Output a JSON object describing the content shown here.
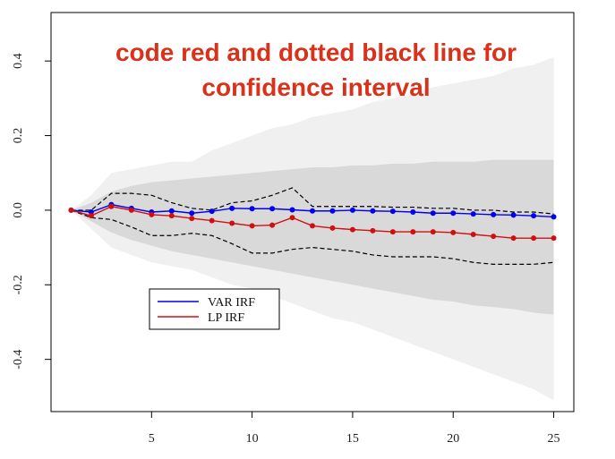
{
  "chart_data": {
    "type": "line",
    "title": "",
    "xlabel": "",
    "ylabel": "",
    "xlim": [
      0,
      26
    ],
    "ylim": [
      -0.54,
      0.53
    ],
    "x_ticks": [
      5,
      10,
      15,
      20,
      25
    ],
    "y_ticks": [
      -0.4,
      -0.2,
      0.0,
      0.2,
      0.4
    ],
    "y_tick_labels": [
      "-0.4",
      "-0.2",
      "0.0",
      "0.2",
      "0.4"
    ],
    "x": [
      1,
      2,
      3,
      4,
      5,
      6,
      7,
      8,
      9,
      10,
      11,
      12,
      13,
      14,
      15,
      16,
      17,
      18,
      19,
      20,
      21,
      22,
      23,
      24,
      25
    ],
    "series": [
      {
        "name": "VAR IRF",
        "color": "#0000ee",
        "values": [
          0.0,
          -0.005,
          0.015,
          0.005,
          -0.005,
          -0.002,
          -0.008,
          -0.003,
          0.005,
          0.004,
          0.004,
          0.001,
          -0.002,
          -0.002,
          0.0,
          -0.002,
          -0.003,
          -0.005,
          -0.008,
          -0.008,
          -0.01,
          -0.012,
          -0.013,
          -0.015,
          -0.018
        ]
      },
      {
        "name": "LP IRF",
        "color": "#d01010",
        "values": [
          0.0,
          -0.015,
          0.01,
          0.0,
          -0.012,
          -0.015,
          -0.022,
          -0.028,
          -0.035,
          -0.042,
          -0.04,
          -0.02,
          -0.042,
          -0.048,
          -0.052,
          -0.055,
          -0.058,
          -0.058,
          -0.058,
          -0.06,
          -0.065,
          -0.07,
          -0.075,
          -0.075,
          -0.075
        ]
      }
    ],
    "ci_lines": {
      "color": "#000000",
      "style": "dashed",
      "upper": [
        0.0,
        0.0,
        0.045,
        0.045,
        0.04,
        0.02,
        0.005,
        0.0,
        0.02,
        0.025,
        0.04,
        0.06,
        0.01,
        0.01,
        0.01,
        0.01,
        0.008,
        0.008,
        0.005,
        0.005,
        0.0,
        0.0,
        -0.005,
        -0.005,
        -0.01
      ],
      "lower": [
        0.0,
        -0.02,
        -0.025,
        -0.045,
        -0.068,
        -0.068,
        -0.062,
        -0.068,
        -0.09,
        -0.115,
        -0.115,
        -0.105,
        -0.1,
        -0.105,
        -0.11,
        -0.12,
        -0.125,
        -0.125,
        -0.125,
        -0.13,
        -0.14,
        -0.145,
        -0.145,
        -0.145,
        -0.14
      ]
    },
    "bands": [
      {
        "color": "#f0f0f0",
        "upper": [
          0.0,
          0.04,
          0.1,
          0.11,
          0.12,
          0.13,
          0.13,
          0.16,
          0.18,
          0.2,
          0.22,
          0.23,
          0.25,
          0.26,
          0.27,
          0.29,
          0.3,
          0.31,
          0.33,
          0.34,
          0.35,
          0.36,
          0.38,
          0.39,
          0.41
        ],
        "lower": [
          0.0,
          -0.05,
          -0.1,
          -0.12,
          -0.14,
          -0.15,
          -0.16,
          -0.18,
          -0.2,
          -0.21,
          -0.23,
          -0.25,
          -0.27,
          -0.29,
          -0.3,
          -0.32,
          -0.34,
          -0.36,
          -0.38,
          -0.4,
          -0.42,
          -0.44,
          -0.46,
          -0.48,
          -0.51
        ]
      },
      {
        "color": "#d9d9d9",
        "upper": [
          0.0,
          0.02,
          0.05,
          0.065,
          0.075,
          0.08,
          0.085,
          0.09,
          0.095,
          0.1,
          0.105,
          0.11,
          0.115,
          0.115,
          0.12,
          0.12,
          0.125,
          0.125,
          0.13,
          0.13,
          0.13,
          0.135,
          0.135,
          0.135,
          0.135
        ],
        "lower": [
          0.0,
          -0.03,
          -0.06,
          -0.08,
          -0.095,
          -0.11,
          -0.12,
          -0.13,
          -0.14,
          -0.15,
          -0.16,
          -0.17,
          -0.18,
          -0.19,
          -0.2,
          -0.21,
          -0.22,
          -0.23,
          -0.24,
          -0.245,
          -0.255,
          -0.26,
          -0.265,
          -0.275,
          -0.28
        ]
      }
    ],
    "legend": {
      "position": "lower-left",
      "entries": [
        {
          "label": "VAR IRF",
          "color": "#0000ee"
        },
        {
          "label": "LP IRF",
          "color": "#d01010"
        }
      ]
    },
    "annotation": {
      "lines": [
        "code red and dotted black line for",
        "confidence interval"
      ],
      "color": "#d9311a"
    },
    "grid": false
  }
}
